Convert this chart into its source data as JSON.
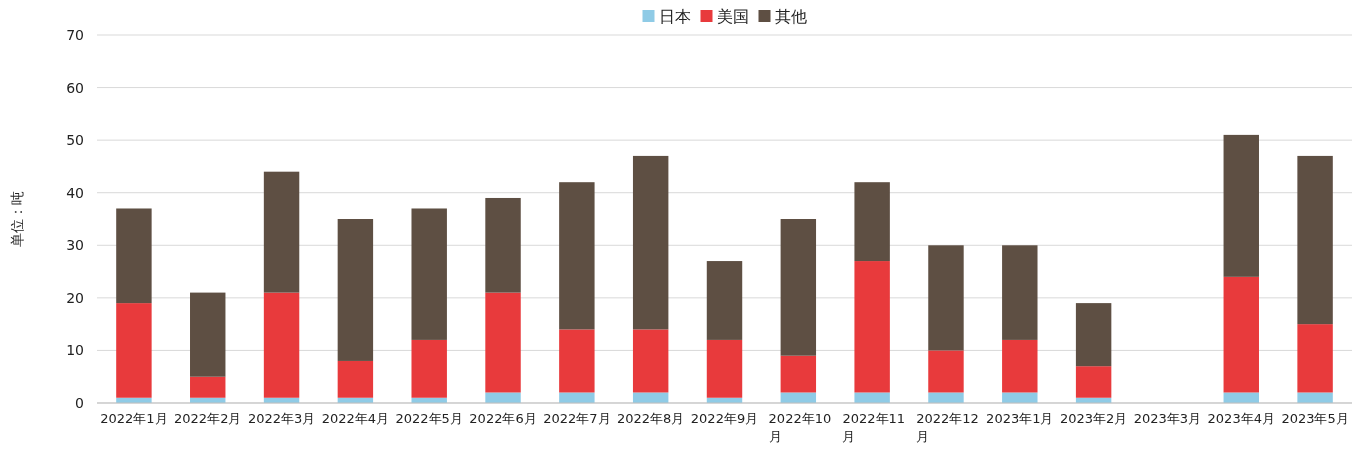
{
  "chart_data": {
    "type": "bar",
    "stacked": true,
    "ylabel": "单位：吨",
    "categories": [
      "2022年1月",
      "2022年2月",
      "2022年3月",
      "2022年4月",
      "2022年5月",
      "2022年6月",
      "2022年7月",
      "2022年8月",
      "2022年9月",
      "2022年10月",
      "2022年11月",
      "2022年12月",
      "2023年1月",
      "2023年2月",
      "2023年3月",
      "2023年4月",
      "2023年5月"
    ],
    "series": [
      {
        "name": "日本",
        "color": "#8fcbe6",
        "values": [
          1,
          1,
          1,
          1,
          1,
          2,
          2,
          2,
          1,
          2,
          2,
          2,
          2,
          1,
          null,
          2,
          2
        ]
      },
      {
        "name": "美国",
        "color": "#e83a3c",
        "values": [
          18,
          4,
          20,
          7,
          11,
          19,
          12,
          12,
          11,
          7,
          25,
          8,
          10,
          6,
          null,
          22,
          13
        ]
      },
      {
        "name": "其他",
        "color": "#5e4f43",
        "values": [
          18,
          16,
          23,
          27,
          25,
          18,
          28,
          33,
          15,
          26,
          15,
          20,
          18,
          12,
          null,
          27,
          32
        ]
      }
    ],
    "ylim": [
      0,
      70
    ],
    "yticks": [
      0,
      10,
      20,
      30,
      40,
      50,
      60,
      70
    ],
    "grid": "y",
    "legend": "top"
  }
}
